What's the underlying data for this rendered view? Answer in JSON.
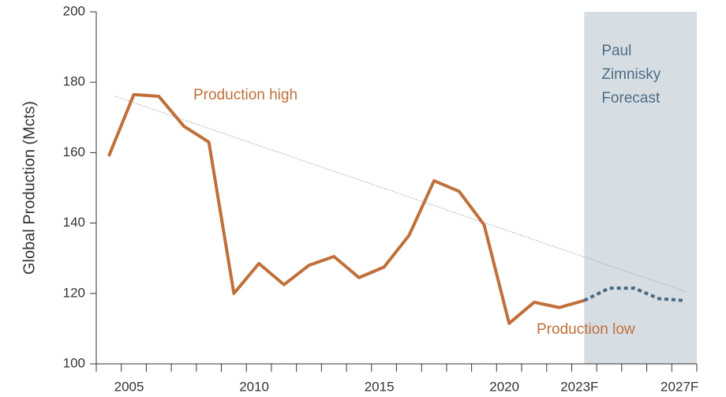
{
  "chart_data": {
    "type": "line",
    "y_label": "Global Production (Mcts)",
    "categories": [
      null,
      "2005",
      null,
      null,
      null,
      null,
      "2010",
      null,
      null,
      null,
      null,
      "2015",
      null,
      null,
      null,
      null,
      "2020",
      null,
      null,
      "2023F",
      null,
      null,
      null,
      "2027F"
    ],
    "series": [
      {
        "name": "Production",
        "color": "#c0703a",
        "style": "solid",
        "values": [
          159,
          176.5,
          176,
          167.5,
          163,
          120,
          128.5,
          122.5,
          128,
          130.5,
          124.5,
          127.5,
          136.5,
          152,
          149,
          139.5,
          111.5,
          117.5,
          116,
          118,
          null,
          null,
          null,
          null
        ]
      },
      {
        "name": "Forecast",
        "color": "#4a6a82",
        "style": "dashed",
        "values": [
          null,
          null,
          null,
          null,
          null,
          null,
          null,
          null,
          null,
          null,
          null,
          null,
          null,
          null,
          null,
          null,
          null,
          null,
          null,
          118,
          121.5,
          121.5,
          118.5,
          118
        ]
      }
    ],
    "trendline": {
      "color": "#aaaaaa",
      "start": 176,
      "end": 120.5
    },
    "forecast_region": {
      "color": "#d6dde3",
      "label": [
        "Paul",
        "Zimnisky",
        "Forecast"
      ],
      "label_color": "#4e6e85"
    },
    "annotations": [
      {
        "text": "Production high",
        "color": "#c0703a"
      },
      {
        "text": "Production low",
        "color": "#c0703a"
      }
    ],
    "ylim": [
      100,
      200
    ],
    "yticks": [
      100,
      120,
      140,
      160,
      180,
      200
    ],
    "grid": false
  }
}
